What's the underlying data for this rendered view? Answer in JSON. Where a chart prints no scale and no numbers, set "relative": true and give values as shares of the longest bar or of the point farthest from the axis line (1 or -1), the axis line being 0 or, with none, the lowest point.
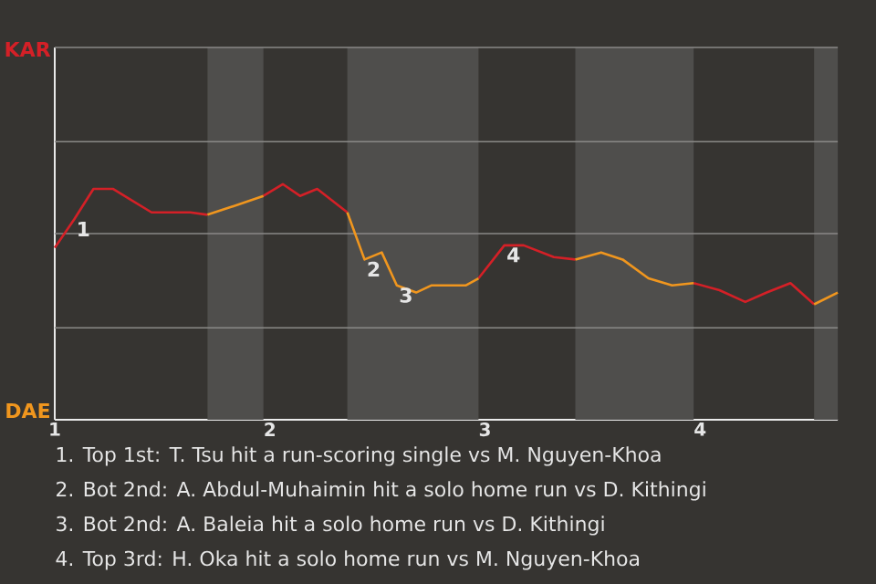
{
  "chart_data": {
    "type": "line",
    "relative": true,
    "xlim": [
      1,
      4.64
    ],
    "xticks": [
      1,
      2,
      3,
      4
    ],
    "ref_lines": [
      {
        "axis": "y",
        "value": 0.39,
        "color": "#8a8987"
      },
      {
        "axis": "y",
        "value": 0.79,
        "color": "#8a8987"
      },
      {
        "axis": "y",
        "value": 1.18,
        "color": "#8a8987"
      },
      {
        "axis": "y",
        "value": 1.58,
        "color": "#8a8987"
      }
    ],
    "series": [
      {
        "color": "#d42027",
        "x": [
          1,
          1.09,
          1.18,
          1.27,
          1.36,
          1.45,
          1.63,
          1.71,
          1.8,
          1.97,
          2.06,
          2.14,
          2.22,
          2.36,
          2.6,
          2.97,
          3.09,
          3.18,
          3.32,
          3.42,
          3.6,
          3.97,
          4.09,
          4.21,
          4.31,
          4.42,
          4.53
        ],
        "values": [
          0.73,
          0.85,
          0.98,
          0.98,
          0.93,
          0.88,
          0.88,
          0.87,
          null,
          0.95,
          1,
          0.95,
          0.98,
          0.88,
          null,
          0.6,
          0.74,
          0.74,
          0.69,
          0.68,
          null,
          0.58,
          0.55,
          0.5,
          0.54,
          0.58,
          0.49
        ]
      },
      {
        "color": "#f0961e",
        "x": [
          1.71,
          1.81,
          1.97,
          2.1,
          2.36,
          2.44,
          2.52,
          2.59,
          2.68,
          2.75,
          2.91,
          2.97,
          3.2,
          3.42,
          3.54,
          3.64,
          3.76,
          3.87,
          3.97,
          4.2,
          4.53,
          4.64
        ],
        "values": [
          0.87,
          0.9,
          0.95,
          null,
          0.88,
          0.68,
          0.71,
          0.57,
          0.54,
          0.57,
          0.57,
          0.6,
          null,
          0.68,
          0.71,
          0.68,
          0.6,
          0.57,
          0.58,
          null,
          0.49,
          0.54
        ]
      }
    ],
    "bands": [
      {
        "axis": "x",
        "from": 1.71,
        "to": 1.97,
        "color": "#4f4e4c"
      },
      {
        "axis": "x",
        "from": 2.36,
        "to": 2.97,
        "color": "#4f4e4c"
      },
      {
        "axis": "x",
        "from": 3.42,
        "to": 3.97,
        "color": "#4f4e4c"
      },
      {
        "axis": "x",
        "from": 4.53,
        "to": 4.64,
        "color": "#4f4e4c"
      }
    ],
    "annotations": [
      "KAR",
      "DAE",
      {
        "text": "1",
        "x": 1.09,
        "y": 0.85
      },
      {
        "text": "2",
        "x": 2.44,
        "y": 0.68
      },
      {
        "text": "3",
        "x": 2.59,
        "y": 0.57
      },
      {
        "text": "4",
        "x": 3.09,
        "y": 0.74
      },
      "1. Top 1st: T. Tsu hit a run-scoring single vs M. Nguyen-Khoa",
      "2. Bot 2nd: A. Abdul-Muhaimin hit a solo home run vs D. Kithingi",
      "3. Bot 2nd: A. Baleia hit a solo home run vs D. Kithingi",
      "4. Top 3rd: H. Oka hit a solo home run vs M. Nguyen-Khoa"
    ]
  }
}
